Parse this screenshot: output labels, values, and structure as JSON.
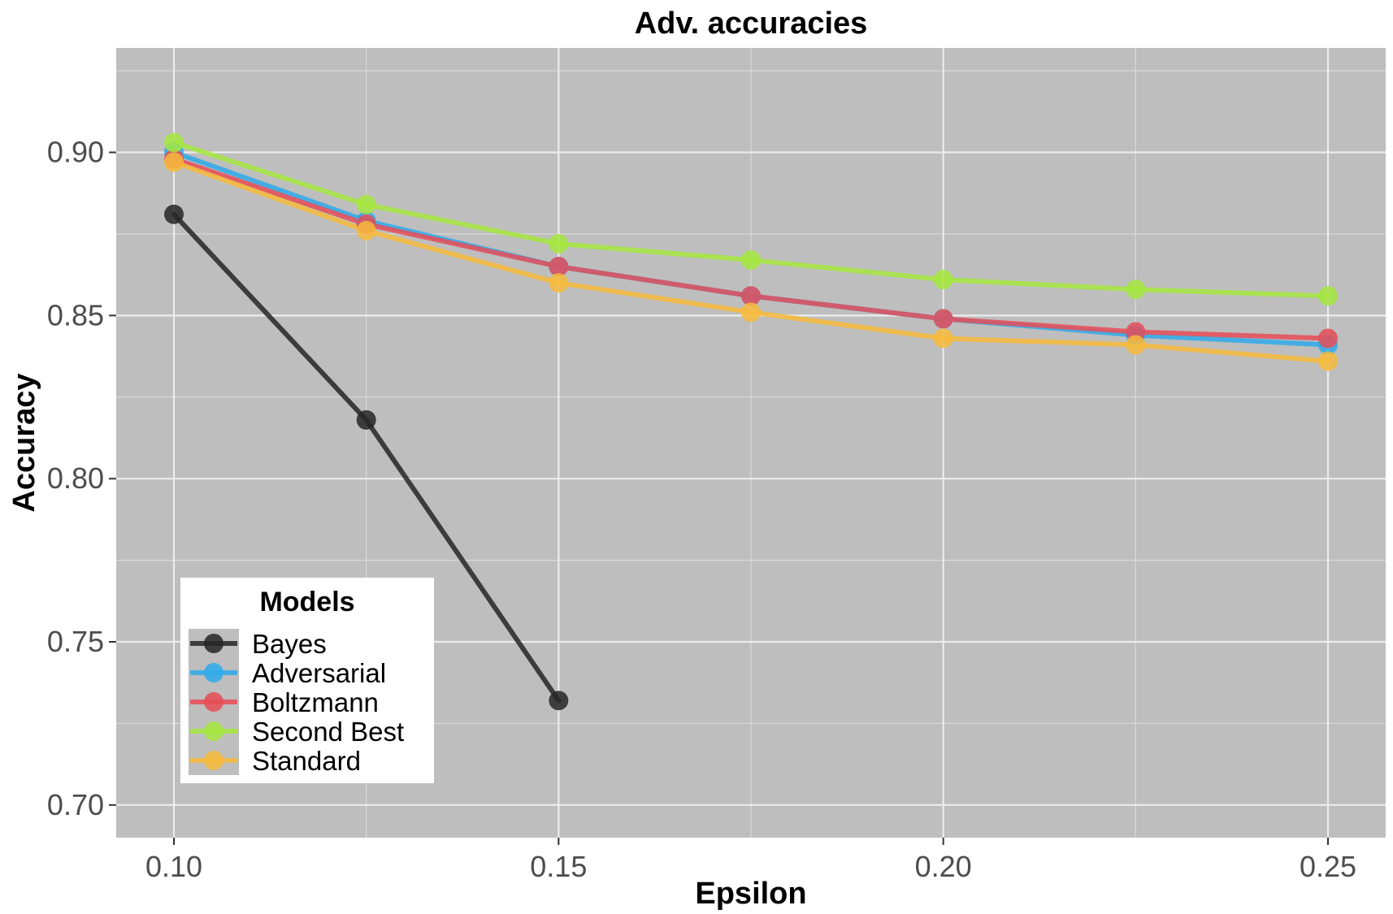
{
  "chart_data": {
    "type": "line",
    "title": "Adv. accuracies",
    "xlabel": "Epsilon",
    "ylabel": "Accuracy",
    "xlim": [
      0.0925,
      0.2575
    ],
    "ylim": [
      0.69,
      0.932
    ],
    "x_ticks": [
      0.1,
      0.15,
      0.2,
      0.25
    ],
    "x_tick_labels": [
      "0.10",
      "0.15",
      "0.20",
      "0.25"
    ],
    "y_ticks": [
      0.7,
      0.75,
      0.8,
      0.85,
      0.9
    ],
    "y_tick_labels": [
      "0.70",
      "0.75",
      "0.80",
      "0.85",
      "0.90"
    ],
    "grid": true,
    "background": "#bebebe",
    "legend": {
      "title": "Models",
      "position": "bottom-left",
      "entries": [
        "Bayes",
        "Adversarial",
        "Boltzmann",
        "Second Best",
        "Standard"
      ]
    },
    "series": [
      {
        "name": "Bayes",
        "color": "#262626",
        "x": [
          0.1,
          0.125,
          0.15
        ],
        "y": [
          0.881,
          0.818,
          0.732
        ]
      },
      {
        "name": "Adversarial",
        "color": "#2eaaea",
        "x": [
          0.1,
          0.125,
          0.15,
          0.175,
          0.2,
          0.225,
          0.25
        ],
        "y": [
          0.9,
          0.879,
          0.865,
          0.856,
          0.849,
          0.844,
          0.841
        ]
      },
      {
        "name": "Boltzmann",
        "color": "#e74c57",
        "x": [
          0.1,
          0.125,
          0.15,
          0.175,
          0.2,
          0.225,
          0.25
        ],
        "y": [
          0.898,
          0.878,
          0.865,
          0.856,
          0.849,
          0.845,
          0.843
        ]
      },
      {
        "name": "Second Best",
        "color": "#a6e840",
        "x": [
          0.1,
          0.125,
          0.15,
          0.175,
          0.2,
          0.225,
          0.25
        ],
        "y": [
          0.903,
          0.884,
          0.872,
          0.867,
          0.861,
          0.858,
          0.856
        ]
      },
      {
        "name": "Standard",
        "color": "#f7bb3c",
        "x": [
          0.1,
          0.125,
          0.15,
          0.175,
          0.2,
          0.225,
          0.25
        ],
        "y": [
          0.897,
          0.876,
          0.86,
          0.851,
          0.843,
          0.841,
          0.836
        ]
      }
    ]
  }
}
